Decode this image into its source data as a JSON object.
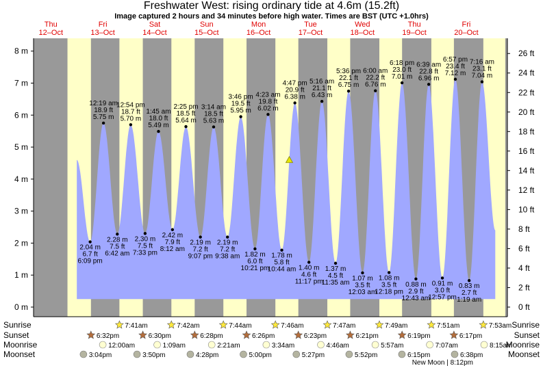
{
  "title": "Freshwater West: rising  ordinary tide at 4.6m (15.2ft)",
  "subtitle": "Image captured 2 hours and 34 minutes before high water. Times are BST (UTC +1.0hrs)",
  "chart_data": {
    "type": "area",
    "x_unit": "hours from 12-Oct 00:00 BST",
    "ylim_m": [
      -0.3,
      8.4
    ],
    "ylim_ft": [
      -0.98,
      27.56
    ],
    "left_axis_ticks_m": [
      "0 m",
      "1 m",
      "2 m",
      "3 m",
      "4 m",
      "5 m",
      "6 m",
      "7 m",
      "8 m"
    ],
    "right_axis_ticks_ft": [
      "0 ft",
      "2 ft",
      "4 ft",
      "6 ft",
      "8 ft",
      "10 ft",
      "12 ft",
      "14 ft",
      "16 ft",
      "18 ft",
      "20 ft",
      "22 ft",
      "24 ft",
      "26 ft"
    ],
    "days": [
      {
        "name": "Thu",
        "date": "12–Oct"
      },
      {
        "name": "Fri",
        "date": "13–Oct"
      },
      {
        "name": "Sat",
        "date": "14–Oct"
      },
      {
        "name": "Sun",
        "date": "15–Oct"
      },
      {
        "name": "Mon",
        "date": "16–Oct"
      },
      {
        "name": "Tue",
        "date": "17–Oct"
      },
      {
        "name": "Wed",
        "date": "18–Oct"
      },
      {
        "name": "Thu",
        "date": "19–Oct"
      },
      {
        "name": "Fri",
        "date": "20–Oct"
      }
    ],
    "tides": [
      {
        "type": "high",
        "t": 12.0,
        "time": "",
        "m": 4.6,
        "ft": "",
        "mtxt": ""
      },
      {
        "type": "low",
        "t": 18.15,
        "time": "6:09 pm",
        "m": 2.04,
        "ft": "6.7 ft",
        "mtxt": "2.04 m"
      },
      {
        "type": "high",
        "t": 24.32,
        "time": "12:19 am",
        "m": 5.75,
        "ft": "18.9 ft",
        "mtxt": "5.75 m"
      },
      {
        "type": "low",
        "t": 30.7,
        "time": "6:42 am",
        "m": 2.28,
        "ft": "7.5 ft",
        "mtxt": "2.28 m"
      },
      {
        "type": "high",
        "t": 36.9,
        "time": "12:54 pm",
        "m": 5.7,
        "ft": "18.7 ft",
        "mtxt": "5.70 m"
      },
      {
        "type": "low",
        "t": 43.55,
        "time": "7:33 pm",
        "m": 2.3,
        "ft": "7.5 ft",
        "mtxt": "2.30 m"
      },
      {
        "type": "high",
        "t": 49.75,
        "time": "1:45 am",
        "m": 5.49,
        "ft": "18.0 ft",
        "mtxt": "5.49 m"
      },
      {
        "type": "low",
        "t": 56.2,
        "time": "8:12 am",
        "m": 2.42,
        "ft": "7.9 ft",
        "mtxt": "2.42 m"
      },
      {
        "type": "high",
        "t": 62.42,
        "time": "2:25 pm",
        "m": 5.64,
        "ft": "18.5 ft",
        "mtxt": "5.64 m"
      },
      {
        "type": "low",
        "t": 69.12,
        "time": "9:07 pm",
        "m": 2.19,
        "ft": "7.2 ft",
        "mtxt": "2.19 m"
      },
      {
        "type": "high",
        "t": 75.23,
        "time": "3:14 am",
        "m": 5.63,
        "ft": "18.5 ft",
        "mtxt": "5.63 m"
      },
      {
        "type": "low",
        "t": 81.63,
        "time": "9:38 am",
        "m": 2.19,
        "ft": "7.2 ft",
        "mtxt": "2.19 m"
      },
      {
        "type": "high",
        "t": 87.77,
        "time": "3:46 pm",
        "m": 5.95,
        "ft": "19.5 ft",
        "mtxt": "5.95 m"
      },
      {
        "type": "low",
        "t": 94.35,
        "time": "10:21 pm",
        "m": 1.82,
        "ft": "6.0 ft",
        "mtxt": "1.82 m"
      },
      {
        "type": "high",
        "t": 100.38,
        "time": "4:23 am",
        "m": 6.02,
        "ft": "19.8 ft",
        "mtxt": "6.02 m"
      },
      {
        "type": "low",
        "t": 106.73,
        "time": "10:44 am",
        "m": 1.78,
        "ft": "5.8 ft",
        "mtxt": "1.78 m"
      },
      {
        "type": "high",
        "t": 112.78,
        "time": "4:47 pm",
        "m": 6.38,
        "ft": "20.9 ft",
        "mtxt": "6.38 m"
      },
      {
        "type": "low",
        "t": 119.28,
        "time": "11:17 pm",
        "m": 1.4,
        "ft": "4.6 ft",
        "mtxt": "1.40 m"
      },
      {
        "type": "high",
        "t": 125.27,
        "time": "5:16 am",
        "m": 6.43,
        "ft": "21.1 ft",
        "mtxt": "6.43 m"
      },
      {
        "type": "low",
        "t": 131.58,
        "time": "11:35 am",
        "m": 1.37,
        "ft": "4.5 ft",
        "mtxt": "1.37 m"
      },
      {
        "type": "high",
        "t": 137.6,
        "time": "5:36 pm",
        "m": 6.75,
        "ft": "22.1 ft",
        "mtxt": "6.75 m"
      },
      {
        "type": "low",
        "t": 144.05,
        "time": "12:03 am",
        "m": 1.07,
        "ft": "3.5 ft",
        "mtxt": "1.07 m"
      },
      {
        "type": "high",
        "t": 150.0,
        "time": "6:00 am",
        "m": 6.76,
        "ft": "22.2 ft",
        "mtxt": "6.76 m"
      },
      {
        "type": "low",
        "t": 156.3,
        "time": "12:18 pm",
        "m": 1.08,
        "ft": "3.5 ft",
        "mtxt": "1.08 m"
      },
      {
        "type": "high",
        "t": 162.3,
        "time": "6:18 pm",
        "m": 7.01,
        "ft": "23.0 ft",
        "mtxt": "7.01 m"
      },
      {
        "type": "low",
        "t": 168.72,
        "time": "12:43 am",
        "m": 0.88,
        "ft": "2.9 ft",
        "mtxt": "0.88 m"
      },
      {
        "type": "high",
        "t": 174.65,
        "time": "6:39 am",
        "m": 6.96,
        "ft": "22.8 ft",
        "mtxt": "6.96 m"
      },
      {
        "type": "low",
        "t": 180.95,
        "time": "12:57 pm",
        "m": 0.91,
        "ft": "3.0 ft",
        "mtxt": "0.91 m"
      },
      {
        "type": "high",
        "t": 186.95,
        "time": "6:57 pm",
        "m": 7.12,
        "ft": "23.4 ft",
        "mtxt": "7.12 m"
      },
      {
        "type": "low",
        "t": 193.32,
        "time": "1:19 am",
        "m": 0.83,
        "ft": "2.7 ft",
        "mtxt": "0.83 m"
      },
      {
        "type": "high",
        "t": 199.27,
        "time": "7:16 am",
        "m": 7.04,
        "ft": "23.1 ft",
        "mtxt": "7.04 m"
      },
      {
        "type": "low",
        "t": 205.4,
        "time": "",
        "m": 2.4,
        "ft": "",
        "mtxt": ""
      }
    ],
    "current_level": {
      "t": 110.2,
      "m": 4.6
    },
    "daylight": [
      {
        "rise": 7.68,
        "set": 18.53
      },
      {
        "rise": 31.68,
        "set": 42.5
      },
      {
        "rise": 55.7,
        "set": 66.47
      },
      {
        "rise": 79.73,
        "set": 90.43
      },
      {
        "rise": 103.77,
        "set": 114.38
      },
      {
        "rise": 127.78,
        "set": 138.35
      },
      {
        "rise": 151.82,
        "set": 162.32
      },
      {
        "rise": 175.85,
        "set": 186.28
      },
      {
        "rise": 199.88,
        "set": 210.0
      }
    ],
    "sunrise": [
      {
        "t": 31.68,
        "label": "7:41am"
      },
      {
        "t": 55.7,
        "label": "7:42am"
      },
      {
        "t": 79.73,
        "label": "7:44am"
      },
      {
        "t": 103.77,
        "label": "7:46am"
      },
      {
        "t": 127.78,
        "label": "7:47am"
      },
      {
        "t": 151.82,
        "label": "7:49am"
      },
      {
        "t": 175.85,
        "label": "7:51am"
      },
      {
        "t": 199.88,
        "label": "7:53am"
      }
    ],
    "sunset": [
      {
        "t": 18.53,
        "label": "6:32pm"
      },
      {
        "t": 42.5,
        "label": "6:30pm"
      },
      {
        "t": 66.47,
        "label": "6:28pm"
      },
      {
        "t": 90.43,
        "label": "6:26pm"
      },
      {
        "t": 114.38,
        "label": "6:23pm"
      },
      {
        "t": 138.35,
        "label": "6:21pm"
      },
      {
        "t": 162.32,
        "label": "6:19pm"
      },
      {
        "t": 186.28,
        "label": "6:17pm"
      }
    ],
    "moonrise": [
      {
        "t": 24.0,
        "label": "12:00am"
      },
      {
        "t": 49.15,
        "label": "1:09am"
      },
      {
        "t": 74.35,
        "label": "2:21am"
      },
      {
        "t": 99.57,
        "label": "3:34am"
      },
      {
        "t": 124.77,
        "label": "4:46am"
      },
      {
        "t": 149.95,
        "label": "5:57am"
      },
      {
        "t": 175.12,
        "label": "7:07am"
      },
      {
        "t": 200.25,
        "label": "8:15am"
      }
    ],
    "moonset": [
      {
        "t": 15.07,
        "label": "3:04pm"
      },
      {
        "t": 39.83,
        "label": "3:50pm"
      },
      {
        "t": 64.47,
        "label": "4:28pm"
      },
      {
        "t": 89.0,
        "label": "5:00pm"
      },
      {
        "t": 113.45,
        "label": "5:27pm"
      },
      {
        "t": 137.87,
        "label": "5:52pm"
      },
      {
        "t": 162.25,
        "label": "6:15pm"
      },
      {
        "t": 186.63,
        "label": "6:38pm"
      }
    ],
    "row_labels": {
      "sunrise": "Sunrise",
      "sunset": "Sunset",
      "moonrise": "Moonrise",
      "moonset": "Moonset"
    },
    "new_moon_text": "New Moon | 8:12pm",
    "colors": {
      "day": "#ffffc8",
      "night": "#999999",
      "water": "#a0a8ff",
      "day_label": "#e00000",
      "sun_star": "#ffe93c",
      "sunset_star": "#b46e3c",
      "moonrise": "#ffffd2",
      "moonset": "#b4b4a0"
    }
  }
}
